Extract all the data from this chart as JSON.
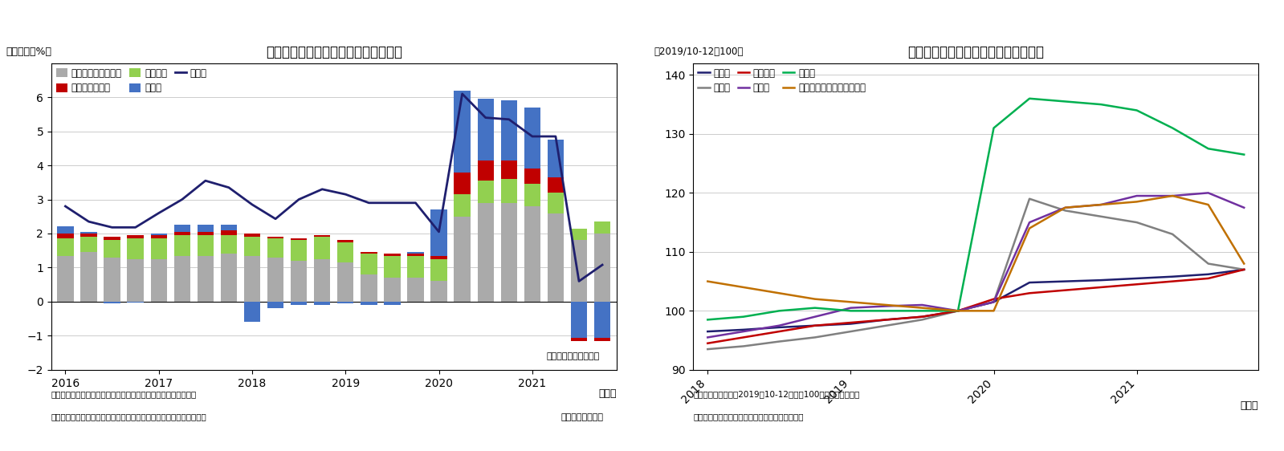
{
  "chart5": {
    "title": "（図表５）貸出伸び率の業種別寄与度",
    "ylabel": "（前年比：%）",
    "xlabel_note": "（年）",
    "note1": "（注）国内銀行銀行勘定、個人による貸家業は不動産業に含む、",
    "note2": "　対面サービス業は、飲食、宿泊、生活関連サービス・娯楽業の合計",
    "source": "（資料）日本銀行",
    "basis_note": "（四半期末残ベース）",
    "x_tick_positions": [
      0,
      4,
      8,
      12,
      16,
      20
    ],
    "x_tick_labels": [
      "2016",
      "2017",
      "2018",
      "2019",
      "2020",
      "2021"
    ],
    "other_industries": [
      1.35,
      1.45,
      1.3,
      1.25,
      1.25,
      1.35,
      1.35,
      1.4,
      1.35,
      1.3,
      1.2,
      1.25,
      1.15,
      0.8,
      0.7,
      0.7,
      0.6,
      2.5,
      2.9,
      2.9,
      2.8,
      2.6,
      1.8,
      2.0
    ],
    "taimenservice": [
      0.15,
      0.1,
      0.1,
      0.1,
      0.1,
      0.1,
      0.1,
      0.15,
      0.1,
      0.05,
      0.05,
      0.05,
      0.05,
      0.05,
      0.05,
      0.05,
      0.1,
      0.65,
      0.6,
      0.55,
      0.45,
      0.45,
      -0.1,
      -0.1
    ],
    "fudosan": [
      0.5,
      0.45,
      0.5,
      0.6,
      0.6,
      0.6,
      0.6,
      0.55,
      0.55,
      0.55,
      0.6,
      0.65,
      0.6,
      0.6,
      0.65,
      0.65,
      0.65,
      0.65,
      0.65,
      0.7,
      0.65,
      0.6,
      0.35,
      0.35
    ],
    "seizogyo": [
      0.2,
      0.05,
      -0.05,
      -0.02,
      0.05,
      0.2,
      0.2,
      0.15,
      -0.6,
      -0.2,
      -0.1,
      -0.1,
      -0.05,
      -0.1,
      -0.1,
      0.05,
      1.35,
      2.4,
      1.8,
      1.75,
      1.8,
      1.1,
      -1.05,
      -1.05
    ],
    "total_loan": [
      2.8,
      2.35,
      2.18,
      2.18,
      2.6,
      3.0,
      3.55,
      3.35,
      2.85,
      2.43,
      3.0,
      3.3,
      3.15,
      2.9,
      2.9,
      2.9,
      2.05,
      6.1,
      5.4,
      5.35,
      4.85,
      4.85,
      0.6,
      1.08
    ],
    "ylim": [
      -2,
      7
    ],
    "yticks": [
      -2,
      -1,
      0,
      1,
      2,
      3,
      4,
      5,
      6
    ],
    "colors": {
      "other": "#aaaaaa",
      "taimen": "#c00000",
      "fudosan": "#92d050",
      "seizo": "#4472c4",
      "total_line": "#1f1f6e"
    }
  },
  "chart6": {
    "title": "（図表６）主な業種別の貸出残高水準",
    "ylabel": "（2019/10-12＝100）",
    "xlabel_note": "（年）",
    "note1": "（注）コロナ禍前の2019年10-12月期＝100とした指数に換算",
    "note2": "（資料）日銀データよりニッセイ基礎研究所作成",
    "x_tick_positions": [
      0,
      4,
      8,
      12
    ],
    "x_tick_labels": [
      "2018",
      "2019",
      "2020",
      "2021"
    ],
    "total_loan": [
      96.5,
      96.8,
      97.2,
      97.5,
      97.8,
      98.5,
      99.0,
      100.0,
      101.5,
      104.8,
      105.0,
      105.2,
      105.5,
      105.8,
      106.2,
      107.0
    ],
    "seizogyo": [
      93.5,
      94.0,
      94.8,
      95.5,
      96.5,
      97.5,
      98.5,
      100.0,
      101.5,
      119.0,
      117.0,
      116.0,
      115.0,
      113.0,
      108.0,
      107.0
    ],
    "fudosan": [
      94.5,
      95.5,
      96.5,
      97.5,
      98.0,
      98.5,
      99.0,
      100.0,
      102.0,
      103.0,
      103.5,
      104.0,
      104.5,
      105.0,
      105.5,
      107.0
    ],
    "shukuhaku": [
      95.5,
      96.5,
      97.5,
      99.0,
      100.5,
      100.8,
      101.0,
      100.0,
      101.5,
      115.0,
      117.5,
      118.0,
      119.5,
      119.5,
      120.0,
      117.5
    ],
    "inshoku": [
      98.5,
      99.0,
      100.0,
      100.5,
      100.0,
      100.0,
      100.0,
      100.0,
      131.0,
      136.0,
      135.5,
      135.0,
      134.0,
      131.0,
      127.5,
      126.5
    ],
    "seikatsu": [
      105.0,
      104.0,
      103.0,
      102.0,
      101.5,
      101.0,
      100.5,
      100.0,
      100.0,
      114.0,
      117.5,
      118.0,
      118.5,
      119.5,
      118.0,
      108.0
    ],
    "ylim": [
      90,
      142
    ],
    "yticks": [
      90,
      100,
      110,
      120,
      130,
      140
    ],
    "colors": {
      "total": "#1f1f6e",
      "seizo": "#808080",
      "fudosan": "#c00000",
      "shukuhaku": "#7030a0",
      "inshoku": "#00b050",
      "seikatsu": "#c07000"
    }
  }
}
